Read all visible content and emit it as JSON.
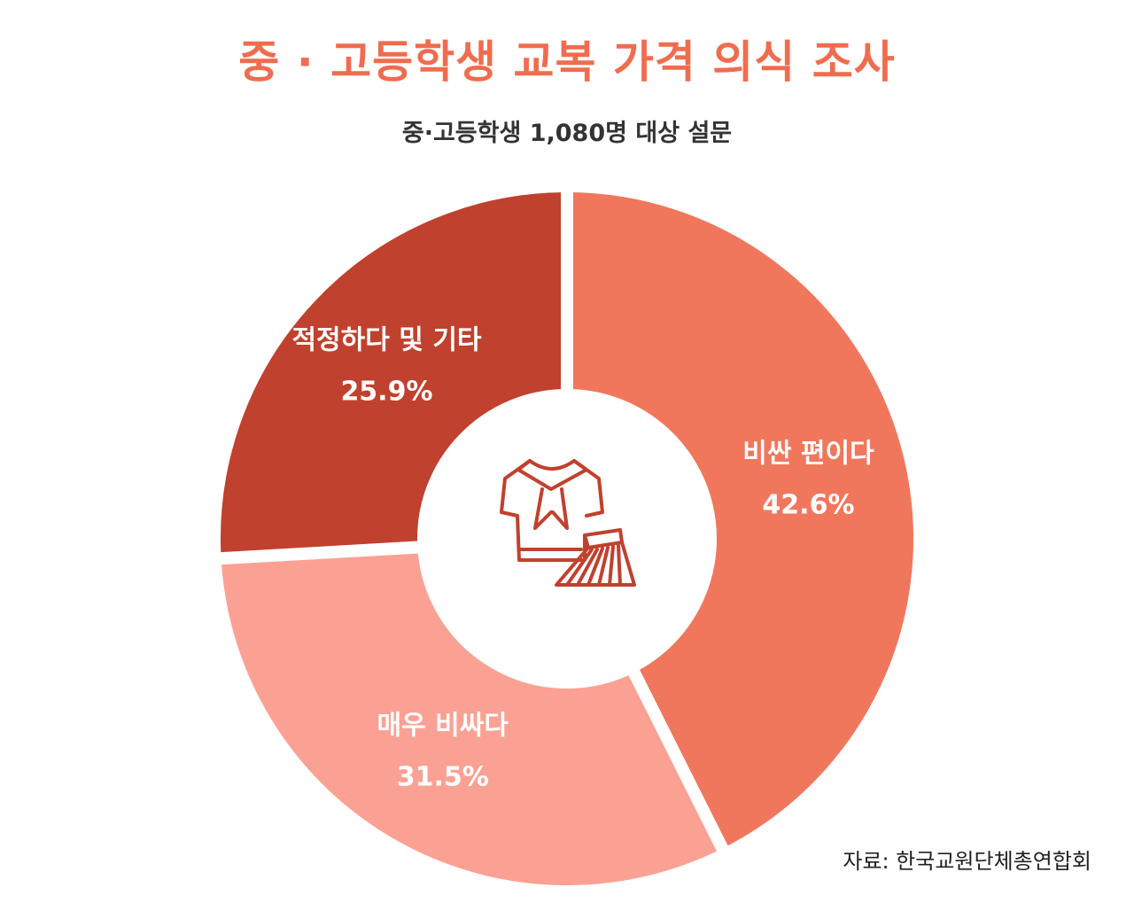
{
  "title": "중 · 고등학생 교복 가격 의식 조사",
  "subtitle": "중·고등학생 1,080명 대상 설문",
  "source": "자료: 한국교원단체총연합회",
  "center_icon": "school-uniform-icon",
  "chart_data": {
    "type": "pie",
    "title": "중 · 고등학생 교복 가격 의식 조사",
    "subtitle": "중·고등학생 1,080명 대상 설문",
    "unit": "%",
    "slices": [
      {
        "label": "비싼 편이다",
        "value": 42.6,
        "display": "42.6%",
        "color": "#f1775c"
      },
      {
        "label": "매우 비싸다",
        "value": 31.5,
        "display": "31.5%",
        "color": "#fba193"
      },
      {
        "label": "적정하다 및 기타",
        "value": 25.9,
        "display": "25.9%",
        "color": "#c0412d"
      }
    ]
  }
}
